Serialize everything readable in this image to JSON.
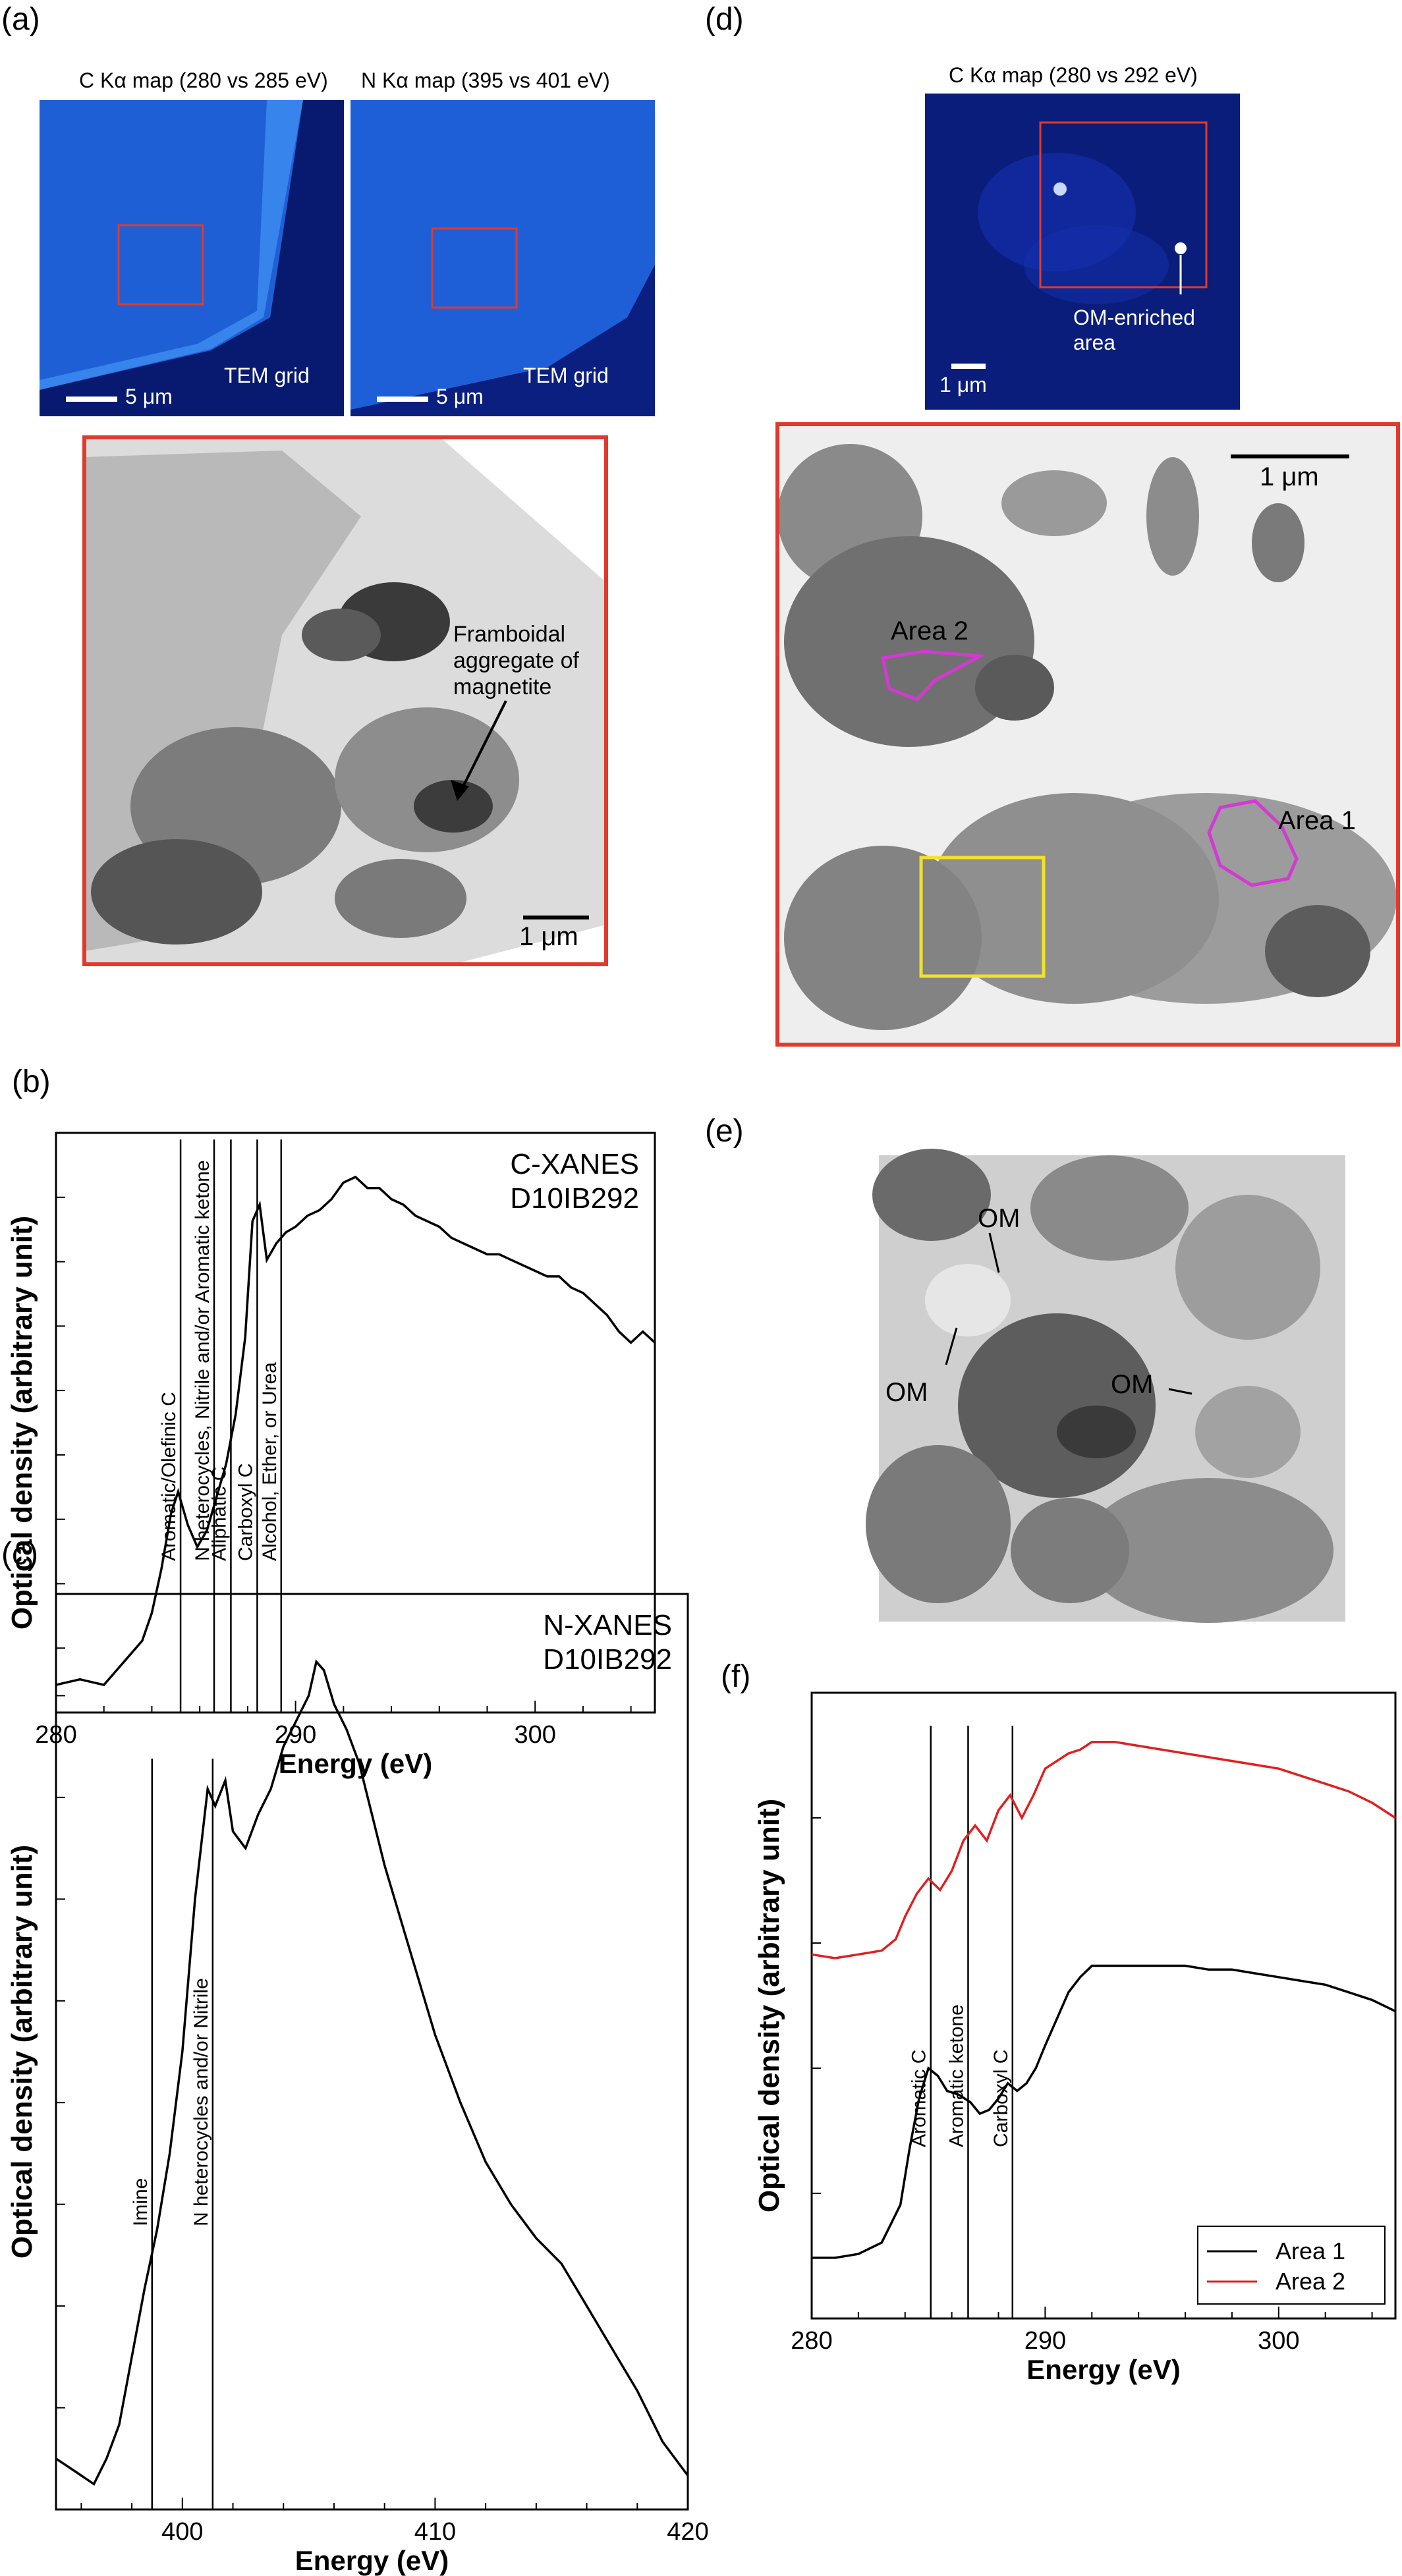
{
  "panels": {
    "a": {
      "label": "(a)",
      "map_c_title": "C Kα map (280 vs 285 eV)",
      "map_n_title": "N Kα map (395 vs 401 eV)",
      "map_c_grid": "TEM grid",
      "map_n_grid": "TEM grid",
      "map_c_scale": "5 μm",
      "map_n_scale": "5 μm",
      "tem_annotation_line1": "Framboidal",
      "tem_annotation_line2": "aggregate of",
      "tem_annotation_line3": "magnetite",
      "tem_scale": "1 μm"
    },
    "b": {
      "label": "(b)"
    },
    "c": {
      "label": "(c)"
    },
    "d": {
      "label": "(d)",
      "map_title": "C Kα map (280 vs 292 eV)",
      "map_annotation_line1": "OM-enriched",
      "map_annotation_line2": "area",
      "map_scale": "1 μm",
      "tem_scale": "1 μm",
      "area1": "Area 1",
      "area2": "Area 2"
    },
    "e": {
      "label": "(e)",
      "om": "OM"
    },
    "f": {
      "label": "(f)"
    }
  },
  "colors": {
    "map_blue": "#1f5fd6",
    "map_dark": "#071a6e",
    "red_box": "#e03a2c",
    "magenta": "#d23ad2",
    "yellow": "#f2e12e",
    "area2_line": "#e02020"
  },
  "chart_data": [
    {
      "id": "b",
      "type": "line",
      "xlabel": "Energy (eV)",
      "ylabel": "Optical density (arbitrary unit)",
      "xlim": [
        280,
        305
      ],
      "xticks": [
        280,
        290,
        300
      ],
      "legend_text": [
        "C-XANES",
        "D10IB292"
      ],
      "series": [
        {
          "x": [
            280,
            281,
            282,
            283,
            283.6,
            284,
            284.4,
            284.8,
            285.1,
            285.5,
            285.9,
            286.3,
            286.7,
            287.1,
            287.5,
            287.9,
            288.2,
            288.5,
            288.8,
            289.2,
            289.6,
            290.0,
            290.5,
            291.0,
            291.5,
            292.0,
            292.5,
            293.0,
            293.5,
            294.0,
            294.5,
            295.0,
            295.5,
            296.0,
            296.5,
            297.0,
            297.5,
            298.0,
            298.5,
            299.0,
            299.5,
            300.0,
            300.5,
            301.0,
            301.5,
            302.0,
            302.5,
            303.0,
            303.5,
            304.0,
            304.5,
            305.0
          ],
          "y": [
            0.05,
            0.06,
            0.05,
            0.1,
            0.13,
            0.18,
            0.26,
            0.36,
            0.4,
            0.34,
            0.3,
            0.33,
            0.39,
            0.45,
            0.54,
            0.68,
            0.89,
            0.92,
            0.82,
            0.85,
            0.87,
            0.88,
            0.9,
            0.91,
            0.93,
            0.96,
            0.97,
            0.95,
            0.95,
            0.93,
            0.92,
            0.9,
            0.89,
            0.88,
            0.86,
            0.85,
            0.84,
            0.83,
            0.83,
            0.82,
            0.81,
            0.8,
            0.79,
            0.79,
            0.77,
            0.76,
            0.74,
            0.72,
            0.69,
            0.67,
            0.69,
            0.67
          ]
        }
      ],
      "annotations": [
        {
          "x": 285.2,
          "text": "Aromatic/Olefinic C"
        },
        {
          "x": 286.6,
          "text": "N heterocycles, Nitrile and/or Aromatic ketone"
        },
        {
          "x": 287.3,
          "text": "Aliphatic C"
        },
        {
          "x": 288.4,
          "text": "Carboxyl C"
        },
        {
          "x": 289.4,
          "text": "Alcohol, Ether, or Urea"
        }
      ]
    },
    {
      "id": "c",
      "type": "line",
      "xlabel": "Energy (eV)",
      "ylabel": "Optical density (arbitrary unit)",
      "xlim": [
        395,
        420
      ],
      "xticks": [
        400,
        410,
        420
      ],
      "legend_text": [
        "N-XANES",
        "D10IB292"
      ],
      "series": [
        {
          "x": [
            395,
            395.5,
            396,
            396.5,
            397,
            397.5,
            398,
            398.5,
            399,
            399.5,
            400,
            400.5,
            401,
            401.3,
            401.7,
            402,
            402.5,
            403,
            403.5,
            404,
            404.5,
            405,
            405.3,
            405.6,
            406,
            406.5,
            407,
            407.5,
            408,
            409,
            410,
            411,
            412,
            413,
            414,
            415,
            416,
            417,
            418,
            419,
            420
          ],
          "y": [
            0.06,
            0.05,
            0.04,
            0.03,
            0.06,
            0.1,
            0.18,
            0.26,
            0.33,
            0.42,
            0.54,
            0.72,
            0.85,
            0.83,
            0.86,
            0.8,
            0.78,
            0.82,
            0.85,
            0.9,
            0.93,
            0.96,
            1.0,
            0.99,
            0.95,
            0.92,
            0.88,
            0.82,
            0.76,
            0.66,
            0.56,
            0.48,
            0.41,
            0.36,
            0.32,
            0.29,
            0.24,
            0.19,
            0.14,
            0.08,
            0.04
          ]
        }
      ],
      "annotations": [
        {
          "x": 398.8,
          "text": "Imine"
        },
        {
          "x": 401.2,
          "text": "N heterocycles and/or Nitrile"
        }
      ]
    },
    {
      "id": "f",
      "type": "line",
      "xlabel": "Energy (eV)",
      "ylabel": "Optical density (arbitrary unit)",
      "xlim": [
        280,
        305
      ],
      "xticks": [
        280,
        290,
        300
      ],
      "legend": [
        "Area 1",
        "Area 2"
      ],
      "series": [
        {
          "name": "Area 1",
          "x": [
            280,
            281,
            282,
            283,
            283.8,
            284.2,
            284.6,
            285,
            285.4,
            285.8,
            286.3,
            286.8,
            287.2,
            287.6,
            288,
            288.4,
            288.8,
            289.2,
            289.6,
            290.0,
            290.5,
            291,
            291.5,
            292,
            293,
            294,
            295,
            296,
            297,
            298,
            299,
            300,
            301,
            302,
            303,
            304,
            305
          ],
          "y": [
            0.16,
            0.16,
            0.17,
            0.2,
            0.3,
            0.45,
            0.58,
            0.66,
            0.64,
            0.6,
            0.59,
            0.57,
            0.54,
            0.55,
            0.58,
            0.62,
            0.6,
            0.62,
            0.66,
            0.72,
            0.79,
            0.86,
            0.9,
            0.93,
            0.93,
            0.93,
            0.93,
            0.93,
            0.92,
            0.92,
            0.91,
            0.9,
            0.89,
            0.88,
            0.86,
            0.84,
            0.81
          ]
        },
        {
          "name": "Area 2",
          "x": [
            280,
            281,
            282,
            283,
            283.6,
            284,
            284.5,
            285,
            285.5,
            286,
            286.5,
            287,
            287.5,
            288,
            288.5,
            289,
            289.5,
            290,
            290.5,
            291,
            291.5,
            292,
            293,
            294,
            295,
            296,
            297,
            298,
            299,
            300,
            301,
            302,
            303,
            304,
            305
          ],
          "y": [
            0.96,
            0.95,
            0.96,
            0.97,
            1.0,
            1.06,
            1.12,
            1.16,
            1.13,
            1.18,
            1.26,
            1.3,
            1.26,
            1.34,
            1.38,
            1.32,
            1.38,
            1.45,
            1.47,
            1.49,
            1.5,
            1.52,
            1.52,
            1.51,
            1.5,
            1.49,
            1.48,
            1.47,
            1.46,
            1.45,
            1.43,
            1.41,
            1.39,
            1.36,
            1.32
          ]
        }
      ],
      "annotations": [
        {
          "x": 285.1,
          "text": "Aromatic C"
        },
        {
          "x": 286.7,
          "text": "Aromatic ketone"
        },
        {
          "x": 288.6,
          "text": "Carboxyl C"
        }
      ]
    }
  ]
}
